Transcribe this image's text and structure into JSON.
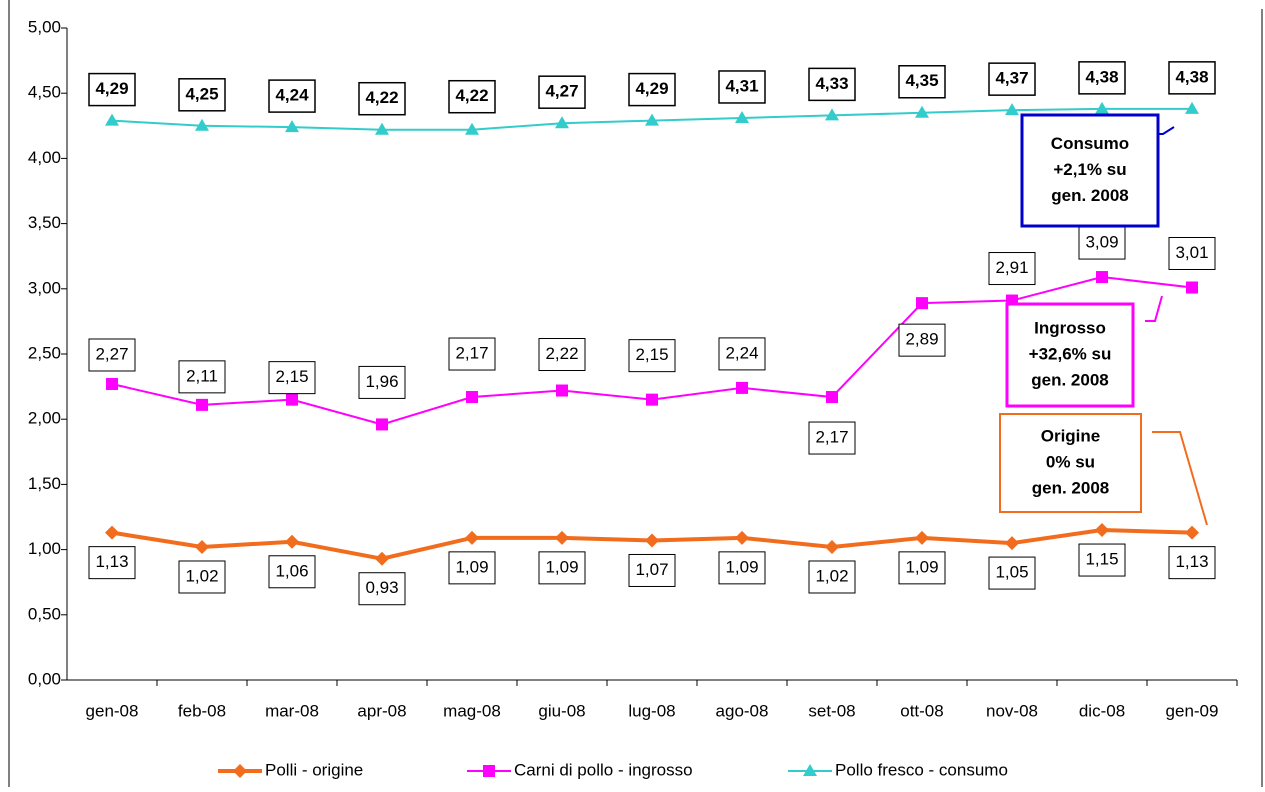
{
  "chart_data": {
    "type": "line",
    "categories": [
      "gen-08",
      "feb-08",
      "mar-08",
      "apr-08",
      "mag-08",
      "giu-08",
      "lug-08",
      "ago-08",
      "set-08",
      "ott-08",
      "nov-08",
      "dic-08",
      "gen-09"
    ],
    "series": [
      {
        "name": "Polli - origine",
        "color": "#f26c1d",
        "marker": "diamond",
        "values": [
          1.13,
          1.02,
          1.06,
          0.93,
          1.09,
          1.09,
          1.07,
          1.09,
          1.02,
          1.09,
          1.05,
          1.15,
          1.13
        ],
        "value_labels": [
          "1,13",
          "1,02",
          "1,06",
          "0,93",
          "1,09",
          "1,09",
          "1,07",
          "1,09",
          "1,02",
          "1,09",
          "1,05",
          "1,15",
          "1,13"
        ]
      },
      {
        "name": "Carni di pollo - ingrosso",
        "color": "#ff00ff",
        "marker": "square",
        "values": [
          2.27,
          2.11,
          2.15,
          1.96,
          2.17,
          2.22,
          2.15,
          2.24,
          2.17,
          2.89,
          2.91,
          3.09,
          3.01
        ],
        "value_labels": [
          "2,27",
          "2,11",
          "2,15",
          "1,96",
          "2,17",
          "2,22",
          "2,15",
          "2,24",
          "2,17",
          "2,89",
          "2,91",
          "3,09",
          "3,01"
        ]
      },
      {
        "name": "Pollo fresco - consumo",
        "color": "#33cccc",
        "marker": "triangle",
        "values": [
          4.29,
          4.25,
          4.24,
          4.22,
          4.22,
          4.27,
          4.29,
          4.31,
          4.33,
          4.35,
          4.37,
          4.38,
          4.38
        ],
        "value_labels": [
          "4,29",
          "4,25",
          "4,24",
          "4,22",
          "4,22",
          "4,27",
          "4,29",
          "4,31",
          "4,33",
          "4,35",
          "4,37",
          "4,38",
          "4,38"
        ]
      }
    ],
    "ylim": [
      0,
      5
    ],
    "yticks": [
      {
        "value": 0,
        "label": "0,00"
      },
      {
        "value": 0.5,
        "label": "0,50"
      },
      {
        "value": 1,
        "label": "1,00"
      },
      {
        "value": 1.5,
        "label": "1,50"
      },
      {
        "value": 2,
        "label": "2,00"
      },
      {
        "value": 2.5,
        "label": "2,50"
      },
      {
        "value": 3,
        "label": "3,00"
      },
      {
        "value": 3.5,
        "label": "3,50"
      },
      {
        "value": 4,
        "label": "4,00"
      },
      {
        "value": 4.5,
        "label": "4,50"
      },
      {
        "value": 5,
        "label": "5,00"
      }
    ],
    "legend": "bottom",
    "annotations": [
      {
        "lines": [
          "Consumo",
          "+2,1% su",
          "gen. 2008"
        ],
        "color": "#0000cc"
      },
      {
        "lines": [
          "Ingrosso",
          "+32,6%  su",
          "gen. 2008"
        ],
        "color": "#ff00ff"
      },
      {
        "lines": [
          "Origine",
          "0%  su",
          "gen. 2008"
        ],
        "color": "#f26c1d"
      }
    ]
  }
}
